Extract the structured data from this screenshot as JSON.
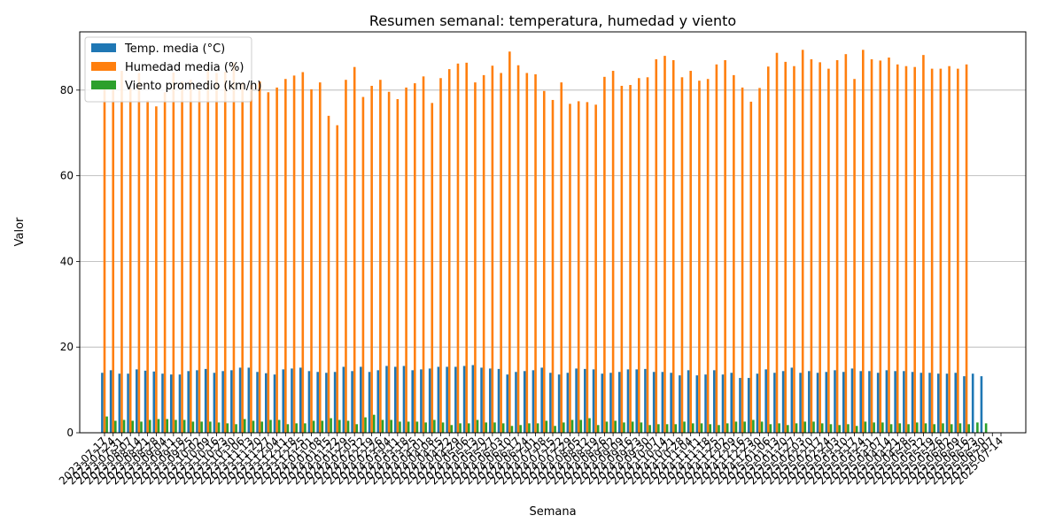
{
  "chart_data": {
    "type": "bar",
    "title": "Resumen semanal: temperatura, humedad y viento",
    "xlabel": "Semana",
    "ylabel": "Valor",
    "ylim": [
      0,
      93.6
    ],
    "yticks": [
      0,
      20,
      40,
      60,
      80
    ],
    "grid": "horizontal",
    "legend_position": "top-left",
    "start_week": "2023-07-17",
    "categories": [
      "2023-07-17",
      "2023-07-24",
      "2023-07-31",
      "2023-08-07",
      "2023-08-14",
      "2023-08-21",
      "2023-08-28",
      "2023-09-04",
      "2023-09-11",
      "2023-09-18",
      "2023-09-25",
      "2023-10-02",
      "2023-10-09",
      "2023-10-16",
      "2023-10-23",
      "2023-10-30",
      "2023-11-06",
      "2023-11-13",
      "2023-11-20",
      "2023-11-27",
      "2023-12-04",
      "2023-12-11",
      "2023-12-18",
      "2023-12-25",
      "2024-01-01",
      "2024-01-08",
      "2024-01-15",
      "2024-01-22",
      "2024-01-29",
      "2024-02-05",
      "2024-02-12",
      "2024-02-19",
      "2024-02-26",
      "2024-03-04",
      "2024-03-11",
      "2024-03-18",
      "2024-03-25",
      "2024-04-01",
      "2024-04-08",
      "2024-04-15",
      "2024-04-22",
      "2024-04-29",
      "2024-05-06",
      "2024-05-13",
      "2024-05-20",
      "2024-05-27",
      "2024-06-03",
      "2024-06-10",
      "2024-06-17",
      "2024-06-24",
      "2024-07-01",
      "2024-07-08",
      "2024-07-15",
      "2024-07-22",
      "2024-07-29",
      "2024-08-05",
      "2024-08-12",
      "2024-08-19",
      "2024-08-26",
      "2024-09-02",
      "2024-09-09",
      "2024-09-16",
      "2024-09-23",
      "2024-09-30",
      "2024-10-07",
      "2024-10-14",
      "2024-10-21",
      "2024-10-28",
      "2024-11-04",
      "2024-11-11",
      "2024-11-18",
      "2024-11-25",
      "2024-12-02",
      "2024-12-09",
      "2024-12-16",
      "2024-12-23",
      "2024-12-30",
      "2025-01-06",
      "2025-01-13",
      "2025-01-20",
      "2025-01-27",
      "2025-02-03",
      "2025-02-10",
      "2025-02-17",
      "2025-02-24",
      "2025-03-03",
      "2025-03-10",
      "2025-03-17",
      "2025-03-24",
      "2025-03-31",
      "2025-04-07",
      "2025-04-14",
      "2025-04-21",
      "2025-04-28",
      "2025-05-05",
      "2025-05-12",
      "2025-05-19",
      "2025-05-26",
      "2025-06-02",
      "2025-06-09",
      "2025-06-16",
      "2025-06-23",
      "2025-06-30",
      "2025-07-07",
      "2025-07-14"
    ],
    "visible_tick_labels": [
      "2023-07-17",
      "2023-07-24",
      "2023-07-31",
      "2023-08-07",
      "2023-08-14",
      "2023-08-21",
      "2023-08-28",
      "2023-09-04",
      "2023-09-11",
      "2023-09-18",
      "2023-09-25",
      "2023-10-02",
      "2023-10-09",
      "2023-10-16",
      "2023-10-23",
      "2023-10-30",
      "2023-11-06",
      "2023-11-13",
      "2023-11-20",
      "2023-11-27",
      "2023-12-04",
      "2023-12-11",
      "2023-12-18",
      "2023-12-25",
      "2024-01-01",
      "2024-01-08",
      "2024-01-15",
      "2024-01-22",
      "2024-01-29",
      "2024-02-05",
      "2024-02-12",
      "2024-02-19",
      "2024-02-26",
      "2024-03-04",
      "2024-03-11",
      "2024-03-18",
      "2024-03-25",
      "2024-04-01",
      "2024-04-08",
      "2024-04-15",
      "2024-04-22",
      "2024-04-29",
      "2024-05-06",
      "2024-05-13",
      "2024-05-20",
      "2024-05-27",
      "2024-06-03",
      "2024-06-10",
      "2024-06-17",
      "2024-06-24",
      "2024-07-01",
      "2024-07-08",
      "2024-07-15",
      "2024-07-22",
      "2024-07-29",
      "2024-08-05",
      "2024-08-12",
      "2024-08-19",
      "2024-08-26",
      "2024-09-02",
      "2024-09-09",
      "2024-09-16",
      "2024-09-23",
      "2024-09-30",
      "2024-10-07",
      "2024-10-14",
      "2024-10-21",
      "2024-10-28",
      "2024-11-04",
      "2024-11-11",
      "2024-11-18",
      "2024-11-25",
      "2024-12-02",
      "2024-12-09",
      "2024-12-16",
      "2024-12-23",
      "2024-12-30",
      "2025-01-06",
      "2025-01-13",
      "2025-01-20",
      "2025-01-27",
      "2025-02-03",
      "2025-02-10",
      "2025-02-17",
      "2025-02-24",
      "2025-03-03",
      "2025-03-10",
      "2025-03-17",
      "2025-03-24",
      "2025-03-31",
      "2025-04-07",
      "2025-04-14",
      "2025-04-21",
      "2025-04-28",
      "2025-05-05",
      "2025-05-12",
      "2025-05-19",
      "2025-05-26",
      "2025-06-02",
      "2025-06-09",
      "2025-06-16",
      "2025-06-23",
      "2025-06-30",
      "2025-07-07",
      "2025-07-14"
    ],
    "series": [
      {
        "name": "Temp. media (°C)",
        "color": "#1f77b4",
        "values": [
          14.0,
          14.6,
          13.8,
          13.8,
          14.8,
          14.5,
          14.3,
          13.8,
          13.6,
          13.6,
          14.4,
          14.6,
          14.9,
          14.0,
          14.4,
          14.6,
          15.2,
          15.2,
          14.2,
          13.9,
          13.6,
          14.8,
          15.0,
          15.2,
          14.4,
          14.2,
          14.0,
          14.2,
          15.4,
          14.4,
          15.4,
          14.2,
          14.6,
          15.6,
          15.4,
          15.6,
          14.6,
          14.8,
          15.0,
          15.4,
          15.4,
          15.4,
          15.6,
          15.8,
          15.2,
          15.0,
          14.9,
          13.6,
          14.2,
          14.4,
          14.6,
          15.2,
          14.0,
          13.6,
          14.0,
          15.0,
          14.9,
          14.8,
          13.8,
          14.0,
          14.2,
          14.8,
          14.8,
          14.9,
          14.2,
          14.2,
          14.0,
          13.4,
          14.6,
          13.4,
          13.6,
          14.6,
          13.6,
          14.0,
          12.8,
          12.8,
          13.8,
          14.8,
          14.0,
          14.4,
          15.2,
          14.0,
          14.4,
          14.0,
          14.2,
          14.6,
          14.2,
          15.0,
          14.4,
          14.4,
          14.0,
          14.6,
          14.4,
          14.4,
          14.2,
          14.0,
          14.0,
          13.8,
          13.8,
          14.0,
          13.2,
          13.8,
          13.2,
          0,
          0
        ]
      },
      {
        "name": "Humedad media (%)",
        "color": "#ff7f0e",
        "values": [
          81.8,
          80.2,
          84.5,
          80.5,
          84.0,
          77.6,
          76.2,
          79.5,
          84.1,
          82.0,
          82.4,
          80.5,
          84.6,
          84.0,
          84.3,
          86.5,
          81.8,
          81.2,
          82.0,
          79.5,
          80.6,
          82.6,
          83.4,
          84.2,
          80.2,
          81.8,
          74.0,
          71.8,
          82.4,
          85.4,
          78.4,
          81.0,
          82.4,
          79.6,
          77.9,
          80.6,
          81.6,
          83.2,
          77.0,
          82.8,
          84.9,
          86.2,
          86.4,
          81.8,
          83.5,
          85.7,
          84.0,
          89.0,
          85.8,
          84.0,
          83.7,
          79.8,
          77.7,
          81.8,
          76.8,
          77.4,
          77.2,
          76.6,
          83.1,
          84.5,
          81.0,
          81.2,
          82.8,
          83.0,
          87.2,
          88.0,
          87.0,
          83.0,
          84.5,
          82.2,
          82.6,
          86.0,
          87.0,
          83.5,
          80.6,
          77.3,
          80.5,
          85.5,
          88.7,
          86.6,
          85.6,
          89.4,
          87.2,
          86.5,
          85.0,
          87.0,
          88.4,
          82.6,
          89.4,
          87.2,
          86.9,
          87.6,
          86.0,
          85.6,
          85.4,
          88.2,
          85.0,
          85.0,
          85.6,
          85.0,
          86.0,
          0,
          0,
          0,
          0
        ]
      },
      {
        "name": "Viento promedio (km/h)",
        "color": "#2ca02c",
        "values": [
          3.8,
          2.8,
          3.0,
          2.8,
          2.6,
          3.0,
          3.2,
          3.2,
          3.0,
          3.0,
          2.6,
          2.6,
          2.6,
          2.4,
          2.2,
          2.0,
          3.2,
          2.8,
          2.6,
          3.0,
          3.0,
          2.0,
          2.2,
          2.2,
          2.8,
          2.8,
          3.4,
          3.0,
          2.8,
          2.0,
          3.6,
          4.2,
          3.0,
          3.0,
          2.6,
          2.6,
          2.6,
          2.4,
          3.0,
          2.4,
          1.8,
          2.2,
          2.2,
          3.0,
          2.4,
          2.4,
          2.2,
          1.6,
          1.8,
          2.2,
          2.2,
          2.8,
          1.6,
          2.4,
          3.0,
          3.0,
          3.4,
          1.8,
          2.6,
          2.8,
          2.4,
          2.6,
          2.4,
          1.8,
          2.0,
          2.0,
          2.0,
          2.6,
          2.2,
          2.2,
          2.0,
          1.8,
          2.2,
          2.6,
          2.6,
          3.0,
          2.6,
          2.0,
          2.2,
          1.8,
          2.2,
          2.6,
          2.6,
          2.2,
          2.0,
          1.8,
          2.0,
          1.6,
          2.6,
          2.4,
          2.4,
          2.0,
          2.2,
          2.0,
          2.4,
          2.2,
          2.0,
          2.2,
          2.0,
          2.2,
          2.0,
          2.4,
          2.2,
          0,
          0
        ]
      }
    ]
  }
}
